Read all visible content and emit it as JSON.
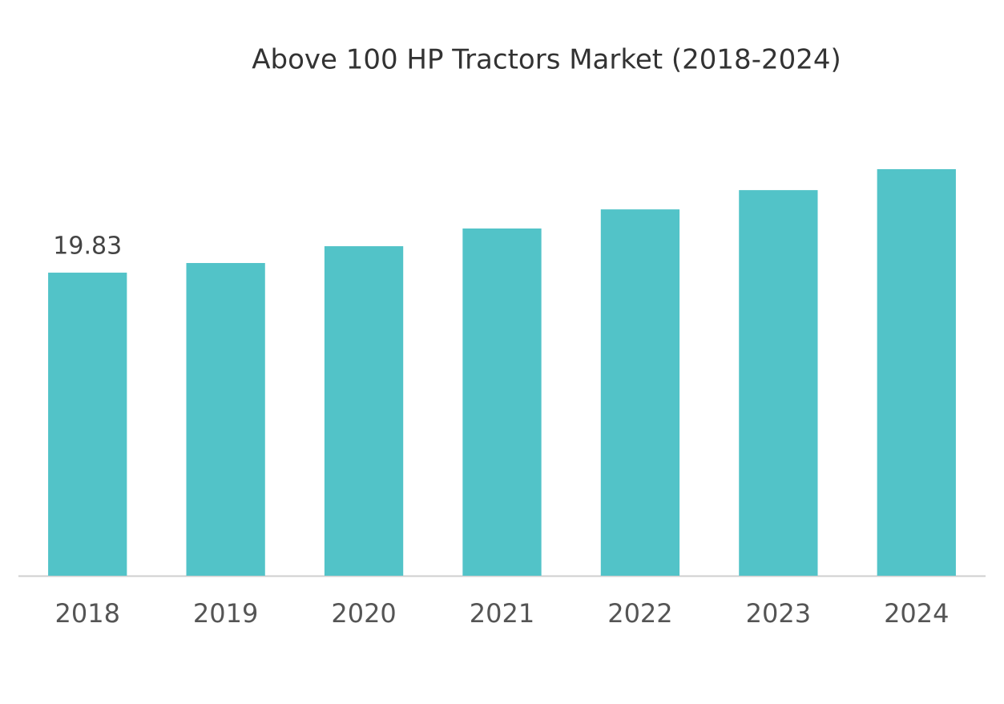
{
  "chart_data": {
    "type": "bar",
    "title": "Above 100 HP Tractors Market (2018-2024)",
    "categories": [
      "2018",
      "2019",
      "2020",
      "2021",
      "2022",
      "2023",
      "2024"
    ],
    "values": [
      19.83,
      20.46,
      21.56,
      22.72,
      23.97,
      25.23,
      26.6
    ],
    "value_labels": [
      "19.83",
      null,
      null,
      null,
      null,
      null,
      null
    ],
    "color": "#52c3c8"
  }
}
